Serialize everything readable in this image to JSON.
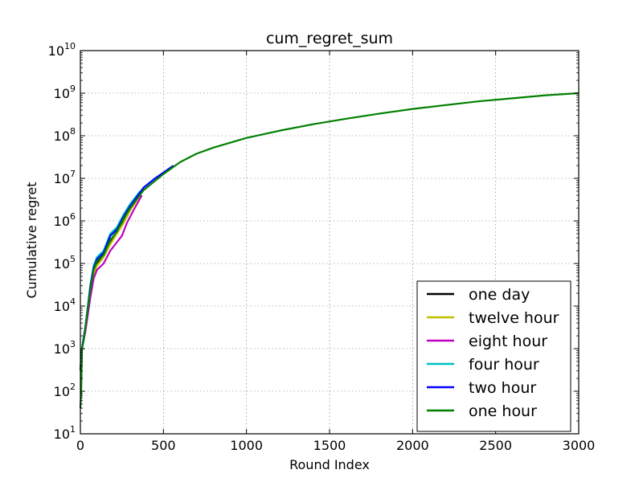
{
  "chart_data": {
    "type": "line",
    "title": "cum_regret_sum",
    "xlabel": "Round Index",
    "ylabel": "Cumulative regret",
    "xlim": [
      0,
      3000
    ],
    "ylim_log10": [
      1,
      10
    ],
    "yscale": "log",
    "grid": true,
    "legend_position": "lower-right",
    "x_ticks": [
      "0",
      "500",
      "1000",
      "1500",
      "2000",
      "2500",
      "3000"
    ],
    "x_tick_values": [
      0,
      500,
      1000,
      1500,
      2000,
      2500,
      3000
    ],
    "y_tick_bases": [
      "10",
      "10",
      "10",
      "10",
      "10",
      "10",
      "10",
      "10",
      "10",
      "10"
    ],
    "y_tick_exponents": [
      "1",
      "2",
      "3",
      "4",
      "5",
      "6",
      "7",
      "8",
      "9",
      "10"
    ],
    "y_tick_values": [
      1,
      2,
      3,
      4,
      5,
      6,
      7,
      8,
      9,
      10
    ],
    "series": [
      {
        "name": "one day",
        "color": "#000000",
        "points": [
          [
            0,
            2.5
          ],
          [
            10,
            3.0
          ],
          [
            30,
            3.5
          ],
          [
            60,
            4.4
          ],
          [
            80,
            4.8
          ],
          [
            100,
            5.0
          ],
          [
            140,
            5.2
          ],
          [
            180,
            5.5
          ],
          [
            220,
            5.75
          ],
          [
            260,
            6.0
          ],
          [
            300,
            6.3
          ],
          [
            360,
            6.65
          ]
        ]
      },
      {
        "name": "twelve hour",
        "color": "#bfbf00",
        "points": [
          [
            0,
            2.5
          ],
          [
            10,
            3.0
          ],
          [
            30,
            3.5
          ],
          [
            60,
            4.3
          ],
          [
            80,
            4.75
          ],
          [
            100,
            4.95
          ],
          [
            140,
            5.15
          ],
          [
            180,
            5.45
          ],
          [
            220,
            5.7
          ],
          [
            260,
            5.95
          ],
          [
            300,
            6.25
          ],
          [
            360,
            6.6
          ]
        ]
      },
      {
        "name": "eight hour",
        "color": "#bf00bf",
        "points": [
          [
            0,
            2.5
          ],
          [
            10,
            3.0
          ],
          [
            30,
            3.4
          ],
          [
            60,
            4.2
          ],
          [
            80,
            4.65
          ],
          [
            100,
            4.85
          ],
          [
            140,
            5.0
          ],
          [
            180,
            5.3
          ],
          [
            220,
            5.5
          ],
          [
            250,
            5.65
          ],
          [
            280,
            5.95
          ],
          [
            320,
            6.25
          ],
          [
            370,
            6.6
          ]
        ]
      },
      {
        "name": "four hour",
        "color": "#00bfbf",
        "points": [
          [
            0,
            2.5
          ],
          [
            10,
            3.0
          ],
          [
            30,
            3.5
          ],
          [
            60,
            4.5
          ],
          [
            80,
            4.95
          ],
          [
            100,
            5.15
          ],
          [
            140,
            5.3
          ],
          [
            180,
            5.7
          ],
          [
            220,
            5.85
          ],
          [
            260,
            6.15
          ],
          [
            300,
            6.4
          ],
          [
            360,
            6.7
          ]
        ]
      },
      {
        "name": "two hour",
        "color": "#0000ff",
        "points": [
          [
            0,
            2.5
          ],
          [
            10,
            3.0
          ],
          [
            30,
            3.5
          ],
          [
            60,
            4.45
          ],
          [
            80,
            4.9
          ],
          [
            100,
            5.1
          ],
          [
            140,
            5.25
          ],
          [
            180,
            5.65
          ],
          [
            220,
            5.8
          ],
          [
            260,
            6.1
          ],
          [
            300,
            6.35
          ],
          [
            380,
            6.78
          ],
          [
            450,
            7.0
          ],
          [
            560,
            7.3
          ]
        ]
      },
      {
        "name": "one hour",
        "color": "#008000",
        "points": [
          [
            0,
            1.6
          ],
          [
            5,
            2.0
          ],
          [
            10,
            3.0
          ],
          [
            20,
            3.2
          ],
          [
            30,
            3.5
          ],
          [
            60,
            4.4
          ],
          [
            80,
            4.85
          ],
          [
            100,
            5.05
          ],
          [
            140,
            5.2
          ],
          [
            180,
            5.55
          ],
          [
            220,
            5.75
          ],
          [
            260,
            6.05
          ],
          [
            300,
            6.3
          ],
          [
            380,
            6.72
          ],
          [
            500,
            7.1
          ],
          [
            600,
            7.38
          ],
          [
            700,
            7.58
          ],
          [
            800,
            7.72
          ],
          [
            1000,
            7.95
          ],
          [
            1200,
            8.12
          ],
          [
            1400,
            8.27
          ],
          [
            1600,
            8.4
          ],
          [
            1800,
            8.52
          ],
          [
            2000,
            8.63
          ],
          [
            2200,
            8.72
          ],
          [
            2400,
            8.81
          ],
          [
            2600,
            8.88
          ],
          [
            2800,
            8.95
          ],
          [
            3000,
            9.0
          ]
        ]
      }
    ]
  }
}
